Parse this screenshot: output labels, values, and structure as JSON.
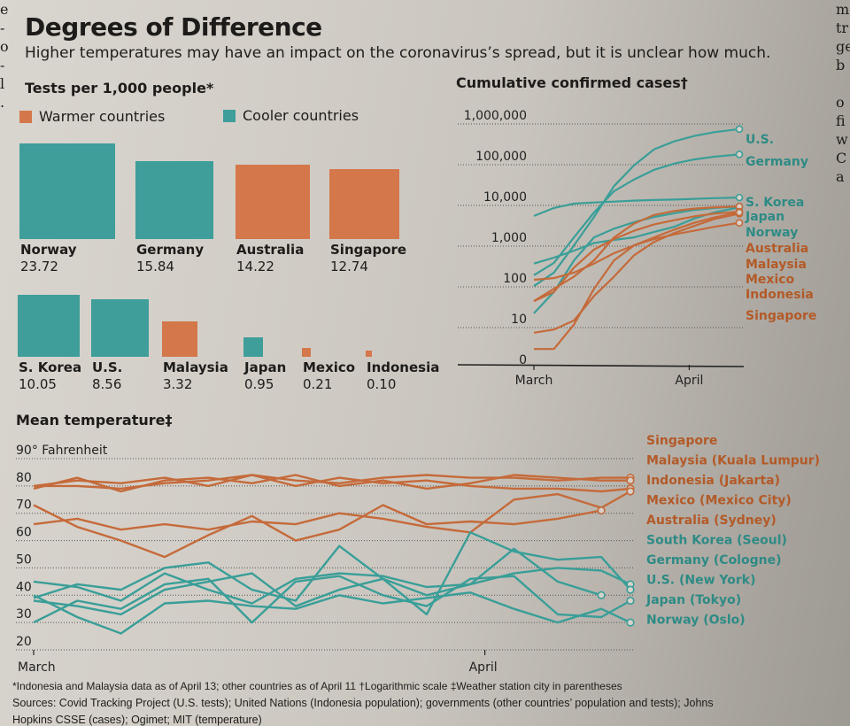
{
  "header": {
    "title": "Degrees of Difference",
    "subtitle": "Higher temperatures may have an impact on the coronavirus’s spread, but it is unclear how much."
  },
  "colors": {
    "warm": "#d4774a",
    "cool": "#3f9e9a",
    "warm_line": "#c56a3a",
    "cool_line": "#3a9e98",
    "warm_label": "#b35a28",
    "cool_label": "#2e8a85"
  },
  "legend": {
    "warm_label": "Warmer countries",
    "cool_label": "Cooler countries"
  },
  "neighbor_column_text": [
    "m",
    "tr",
    "ge",
    "b",
    "",
    "o",
    "fi",
    "w",
    "C",
    "a"
  ],
  "left_column_text": [
    "e",
    "-",
    "o",
    "-",
    "l",
    "."
  ],
  "chart_data": [
    {
      "type": "bar",
      "title": "Tests per 1,000 people*",
      "note": "area-proportional squares",
      "categories": [
        "Norway",
        "Germany",
        "Australia",
        "Singapore",
        "S. Korea",
        "U.S.",
        "Malaysia",
        "Japan",
        "Mexico",
        "Indonesia"
      ],
      "values": [
        23.72,
        15.84,
        14.22,
        12.74,
        10.05,
        8.56,
        3.32,
        0.95,
        0.21,
        0.1
      ],
      "value_labels": [
        "23.72",
        "15.84",
        "14.22",
        "12.74",
        "10.05",
        "8.56",
        "3.32",
        "0.95",
        "0.21",
        "0.10"
      ],
      "group": [
        "cool",
        "cool",
        "warm",
        "warm",
        "cool",
        "cool",
        "warm",
        "cool",
        "warm",
        "warm"
      ],
      "legend": [
        "Warmer countries",
        "Cooler countries"
      ],
      "legend_position": "top-left"
    },
    {
      "type": "line",
      "title": "Cumulative confirmed cases†",
      "yscale": "log",
      "yticks": [
        "1,000,000",
        "100,000",
        "10,000",
        "1,000",
        "100",
        "10",
        "0"
      ],
      "ytick_values": [
        1000000,
        100000,
        10000,
        1000,
        100,
        10,
        1
      ],
      "xticks": [
        "March",
        "April"
      ],
      "xlim_days": [
        0,
        42
      ],
      "x_tick_days": [
        0,
        31
      ],
      "series": [
        {
          "name": "U.S.",
          "group": "cool",
          "x": [
            0,
            4,
            8,
            12,
            16,
            20,
            24,
            28,
            32,
            36,
            41
          ],
          "y": [
            70,
            150,
            700,
            3500,
            20000,
            65000,
            160000,
            250000,
            340000,
            420000,
            500000
          ]
        },
        {
          "name": "Germany",
          "group": "cool",
          "x": [
            0,
            4,
            8,
            12,
            16,
            20,
            24,
            28,
            32,
            36,
            41
          ],
          "y": [
            130,
            260,
            1100,
            4500,
            15000,
            29000,
            50000,
            71000,
            90000,
            105000,
            120000
          ]
        },
        {
          "name": "S. Korea",
          "group": "cool",
          "x": [
            0,
            4,
            8,
            12,
            16,
            20,
            24,
            28,
            32,
            36,
            41
          ],
          "y": [
            3700,
            5800,
            7400,
            7900,
            8300,
            8800,
            9100,
            9300,
            9700,
            10100,
            10450
          ]
        },
        {
          "name": "Japan",
          "group": "cool",
          "x": [
            0,
            4,
            8,
            12,
            16,
            20,
            24,
            28,
            32,
            36,
            41
          ],
          "y": [
            250,
            350,
            520,
            800,
            950,
            1100,
            1500,
            2000,
            3200,
            4500,
            6000
          ]
        },
        {
          "name": "Norway",
          "group": "cool",
          "x": [
            0,
            4,
            8,
            12,
            16,
            20,
            24,
            28,
            32,
            36,
            41
          ],
          "y": [
            15,
            50,
            300,
            1100,
            1800,
            2600,
            3500,
            4300,
            5200,
            5800,
            6300
          ]
        },
        {
          "name": "Australia",
          "group": "warm",
          "x": [
            0,
            4,
            8,
            12,
            16,
            20,
            24,
            28,
            32,
            36,
            41
          ],
          "y": [
            30,
            60,
            120,
            300,
            1100,
            2400,
            3900,
            4900,
            5600,
            6000,
            6300
          ]
        },
        {
          "name": "Malaysia",
          "group": "warm",
          "x": [
            0,
            4,
            8,
            12,
            16,
            20,
            24,
            28,
            32,
            36,
            41
          ],
          "y": [
            30,
            50,
            200,
            550,
            1000,
            1600,
            2300,
            2900,
            3600,
            4200,
            4700
          ]
        },
        {
          "name": "Mexico",
          "group": "warm",
          "x": [
            0,
            4,
            8,
            12,
            16,
            20,
            24,
            28,
            32,
            36,
            41
          ],
          "y": [
            5,
            6,
            10,
            40,
            120,
            400,
            850,
            1400,
            2100,
            3100,
            4200
          ]
        },
        {
          "name": "Indonesia",
          "group": "warm",
          "x": [
            0,
            4,
            8,
            12,
            16,
            20,
            24,
            28,
            32,
            36,
            41
          ],
          "y": [
            2,
            2,
            8,
            60,
            300,
            700,
            1100,
            1700,
            2500,
            3400,
            4500
          ]
        },
        {
          "name": "Singapore",
          "group": "warm",
          "x": [
            0,
            4,
            8,
            12,
            16,
            20,
            24,
            28,
            32,
            36,
            41
          ],
          "y": [
            100,
            110,
            150,
            250,
            450,
            700,
            1000,
            1300,
            1600,
            2000,
            2500
          ]
        }
      ],
      "grid": true
    },
    {
      "type": "line",
      "title": "Mean temperature‡",
      "ylabel": "90° Fahrenheit",
      "yticks": [
        "90° Fahrenheit",
        "80",
        "70",
        "60",
        "50",
        "40",
        "30",
        "20"
      ],
      "ytick_values": [
        90,
        80,
        70,
        60,
        50,
        40,
        30,
        20
      ],
      "ylim": [
        20,
        90
      ],
      "xticks": [
        "March",
        "April"
      ],
      "xlim_days": [
        0,
        41
      ],
      "x_tick_days": [
        0,
        31
      ],
      "series": [
        {
          "name": "Singapore",
          "group": "warm",
          "x": [
            0,
            3,
            6,
            9,
            12,
            15,
            18,
            21,
            24,
            27,
            30,
            33,
            36,
            39,
            41
          ],
          "y": [
            80,
            82,
            81,
            83,
            80,
            84,
            82,
            81,
            83,
            84,
            83,
            83,
            82,
            83,
            83
          ]
        },
        {
          "name": "Malaysia (Kuala Lumpur)",
          "group": "warm",
          "x": [
            0,
            3,
            6,
            9,
            12,
            15,
            18,
            21,
            24,
            27,
            30,
            33,
            36,
            39,
            41
          ],
          "y": [
            79,
            83,
            78,
            82,
            83,
            81,
            84,
            80,
            82,
            79,
            81,
            84,
            83,
            82,
            82
          ]
        },
        {
          "name": "Indonesia (Jakarta)",
          "group": "warm",
          "x": [
            0,
            3,
            6,
            9,
            12,
            15,
            18,
            21,
            24,
            27,
            30,
            33,
            36,
            39,
            41
          ],
          "y": [
            80,
            80,
            79,
            81,
            82,
            84,
            80,
            83,
            81,
            82,
            80,
            79,
            79,
            78,
            79
          ]
        },
        {
          "name": "Mexico (Mexico City)",
          "group": "warm",
          "x": [
            0,
            3,
            6,
            9,
            12,
            15,
            18,
            21,
            24,
            27,
            30,
            33,
            36,
            39,
            41
          ],
          "y": [
            66,
            68,
            64,
            66,
            64,
            67,
            66,
            70,
            68,
            65,
            63,
            75,
            77,
            72,
            78
          ]
        },
        {
          "name": "Australia (Sydney)",
          "group": "warm",
          "x": [
            0,
            3,
            6,
            9,
            12,
            15,
            18,
            21,
            24,
            27,
            30,
            33,
            36,
            39
          ],
          "y": [
            73,
            65,
            60,
            54,
            62,
            69,
            60,
            64,
            73,
            66,
            67,
            66,
            68,
            71
          ]
        },
        {
          "name": "South Korea (Seoul)",
          "group": "cool",
          "x": [
            0,
            3,
            6,
            9,
            12,
            15,
            18,
            21,
            24,
            27,
            30,
            33,
            36,
            39,
            41
          ],
          "y": [
            45,
            43,
            38,
            48,
            42,
            37,
            46,
            48,
            47,
            43,
            44,
            48,
            50,
            49,
            44
          ]
        },
        {
          "name": "Germany (Cologne)",
          "group": "cool",
          "x": [
            0,
            3,
            6,
            9,
            12,
            15,
            18,
            21,
            24,
            27,
            30,
            33,
            36,
            39,
            41
          ],
          "y": [
            39,
            44,
            42,
            50,
            52,
            42,
            38,
            58,
            46,
            33,
            63,
            56,
            53,
            54,
            42
          ]
        },
        {
          "name": "U.S. (New York)",
          "group": "cool",
          "x": [
            0,
            3,
            6,
            9,
            12,
            15,
            18,
            21,
            24,
            27,
            30,
            33,
            36,
            39
          ],
          "y": [
            38,
            36,
            33,
            42,
            45,
            48,
            36,
            42,
            46,
            40,
            44,
            57,
            45,
            40
          ]
        },
        {
          "name": "Japan (Tokyo)",
          "group": "cool",
          "x": [
            0,
            3,
            6,
            9,
            12,
            15,
            18,
            21,
            24,
            27,
            30,
            33,
            36,
            39,
            41
          ],
          "y": [
            30,
            38,
            35,
            44,
            46,
            30,
            45,
            47,
            40,
            36,
            46,
            47,
            33,
            32,
            38
          ]
        },
        {
          "name": "Norway (Oslo)",
          "group": "cool",
          "x": [
            0,
            3,
            6,
            9,
            12,
            15,
            18,
            21,
            24,
            27,
            30,
            33,
            36,
            39,
            41
          ],
          "y": [
            40,
            32,
            26,
            37,
            38,
            36,
            35,
            40,
            37,
            39,
            41,
            35,
            30,
            35,
            30
          ]
        }
      ],
      "grid": true
    }
  ],
  "footnotes": {
    "note": "*Indonesia and Malaysia data as of April 13; other countries as of April 11   †Logarithmic scale   ‡Weather station city in parentheses",
    "sources": "Sources: Covid Tracking Project (U.S. tests); United Nations (Indonesia population); governments (other countries’ population and tests); Johns",
    "sources_cont": "Hopkins CSSE (cases); Ogimet; MIT (temperature)"
  }
}
